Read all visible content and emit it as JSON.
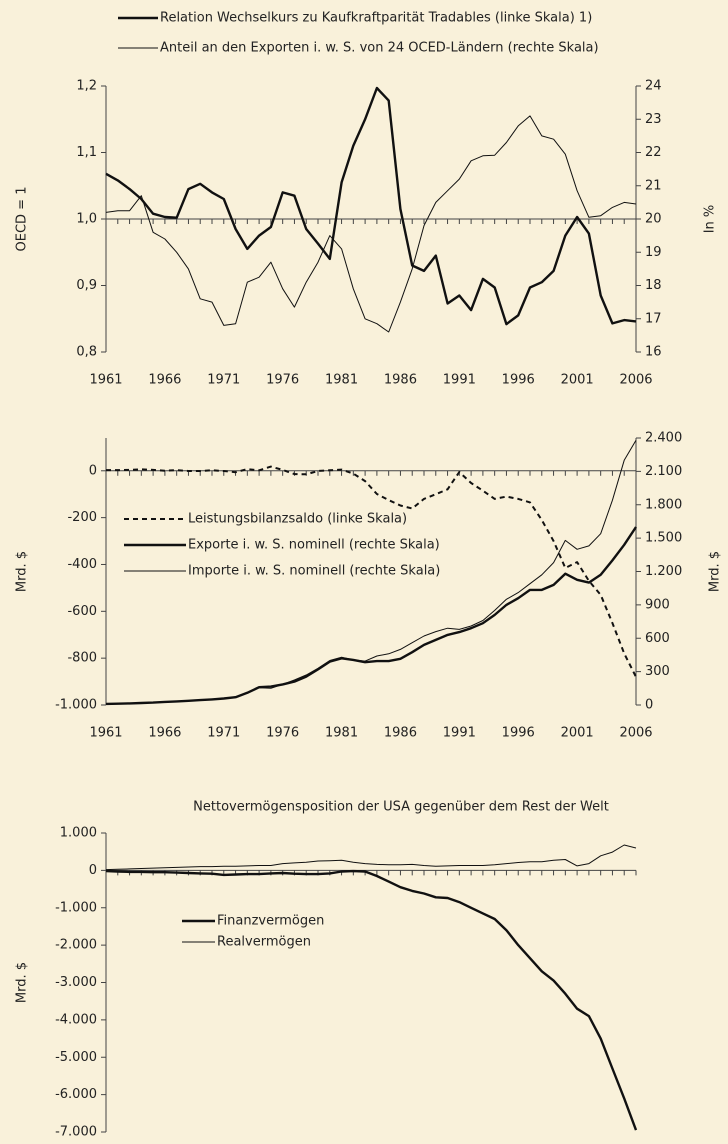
{
  "chart_data": [
    {
      "type": "line",
      "x": [
        1961,
        1962,
        1963,
        1964,
        1965,
        1966,
        1967,
        1968,
        1969,
        1970,
        1971,
        1972,
        1973,
        1974,
        1975,
        1976,
        1977,
        1978,
        1979,
        1980,
        1981,
        1982,
        1983,
        1984,
        1985,
        1986,
        1987,
        1988,
        1989,
        1990,
        1991,
        1992,
        1993,
        1994,
        1995,
        1996,
        1997,
        1998,
        1999,
        2000,
        2001,
        2002,
        2003,
        2004,
        2005,
        2006
      ],
      "xlim": [
        1961,
        2006
      ],
      "xticks": [
        1961,
        1966,
        1971,
        1976,
        1981,
        1986,
        1991,
        1996,
        2001,
        2006
      ],
      "ylim": [
        0.8,
        1.2
      ],
      "yticks": [
        {
          "value": 0.8,
          "label": "0,8"
        },
        {
          "value": 0.9,
          "label": "0,9"
        },
        {
          "value": 1.0,
          "label": "1,0"
        },
        {
          "value": 1.1,
          "label": "1,1"
        },
        {
          "value": 1.2,
          "label": "1,2"
        }
      ],
      "y2lim": [
        16,
        24
      ],
      "y2ticks": [
        16,
        17,
        18,
        19,
        20,
        21,
        22,
        23,
        24
      ],
      "xaxis_at": 1.0,
      "ylabel": "OECD = 1",
      "y2label": "In %",
      "legend": "top",
      "series": [
        {
          "name": "Relation Wechselkurs zu Kaufkraftparität Tradables (linke Skala) 1)",
          "color": "#111111",
          "style": "thick",
          "values": [
            1.068,
            1.058,
            1.045,
            1.03,
            1.008,
            1.003,
            1.002,
            1.045,
            1.053,
            1.04,
            1.03,
            0.985,
            0.955,
            0.975,
            0.988,
            1.04,
            1.035,
            0.985,
            0.963,
            0.94,
            1.055,
            1.11,
            1.15,
            1.197,
            1.178,
            1.015,
            0.93,
            0.922,
            0.945,
            0.873,
            0.885,
            0.863,
            0.91,
            0.897,
            0.842,
            0.855,
            0.897,
            0.905,
            0.922,
            0.975,
            1.003,
            0.978,
            0.885,
            0.843,
            0.848,
            0.846
          ]
        },
        {
          "name": "Anteil an den Exporten i. w. S. von 24 OCED-Ländern (rechte Skala)",
          "color": "#111111",
          "style": "thin",
          "axis": "y2",
          "values": [
            20.2,
            20.25,
            20.25,
            20.7,
            19.6,
            19.4,
            19.0,
            18.5,
            17.6,
            17.5,
            16.8,
            16.85,
            18.1,
            18.25,
            18.7,
            17.9,
            17.35,
            18.1,
            18.7,
            19.5,
            19.1,
            17.9,
            17.0,
            16.85,
            16.6,
            17.5,
            18.5,
            19.8,
            20.5,
            20.85,
            21.2,
            21.75,
            21.9,
            21.92,
            22.3,
            22.8,
            23.1,
            22.5,
            22.4,
            21.95,
            20.85,
            20.05,
            20.1,
            20.35,
            20.5,
            20.45
          ]
        }
      ]
    },
    {
      "type": "line",
      "x": [
        1961,
        1962,
        1963,
        1964,
        1965,
        1966,
        1967,
        1968,
        1969,
        1970,
        1971,
        1972,
        1973,
        1974,
        1975,
        1976,
        1977,
        1978,
        1979,
        1980,
        1981,
        1982,
        1983,
        1984,
        1985,
        1986,
        1987,
        1988,
        1989,
        1990,
        1991,
        1992,
        1993,
        1994,
        1995,
        1996,
        1997,
        1998,
        1999,
        2000,
        2001,
        2002,
        2003,
        2004,
        2005,
        2006
      ],
      "xlim": [
        1961,
        2006
      ],
      "xticks": [
        1961,
        1966,
        1971,
        1976,
        1981,
        1986,
        1991,
        1996,
        2001,
        2006
      ],
      "ylim": [
        -1000,
        140
      ],
      "yticks": [
        {
          "value": -1000,
          "label": "-1.000"
        },
        -800,
        -600,
        -400,
        -200,
        0
      ],
      "y2lim": [
        0,
        2400
      ],
      "y2ticks": [
        0,
        300,
        600,
        900,
        {
          "value": 1200,
          "label": "1.200"
        },
        {
          "value": 1500,
          "label": "1.500"
        },
        {
          "value": 1800,
          "label": "1.800"
        },
        {
          "value": 2100,
          "label": "2.100"
        },
        {
          "value": 2400,
          "label": "2.400"
        }
      ],
      "xaxis_at": 0,
      "ylabel": "Mrd. $",
      "y2label": "Mrd. $",
      "legend": "inside",
      "series": [
        {
          "name": "Leistungsbilanzsaldo (linke Skala)",
          "color": "#111111",
          "style": "dashed",
          "values": [
            3,
            3,
            4,
            6,
            4,
            0,
            3,
            -1,
            -1,
            2,
            -1,
            -6,
            7,
            2,
            18,
            4,
            -14,
            -15,
            -1,
            2,
            5,
            -12,
            -44,
            -99,
            -125,
            -148,
            -161,
            -120,
            -100,
            -79,
            -5,
            -52,
            -85,
            -120,
            -110,
            -120,
            -135,
            -210,
            -300,
            -415,
            -390,
            -470,
            -530,
            -650,
            -780,
            -880
          ]
        },
        {
          "name": "Exporte i. w. S. nominell (rechte Skala)",
          "color": "#111111",
          "style": "thick",
          "axis": "y2",
          "values": [
            10,
            12,
            14,
            18,
            22,
            28,
            32,
            38,
            44,
            50,
            58,
            70,
            110,
            160,
            165,
            185,
            210,
            255,
            320,
            390,
            420,
            405,
            385,
            395,
            395,
            415,
            475,
            540,
            585,
            630,
            655,
            690,
            735,
            810,
            900,
            960,
            1035,
            1035,
            1080,
            1180,
            1125,
            1100,
            1170,
            1300,
            1440,
            1600
          ]
        },
        {
          "name": "Importe i. w. S. nominell (rechte Skala)",
          "color": "#111111",
          "style": "thin",
          "axis": "y2",
          "values": [
            8,
            10,
            12,
            15,
            20,
            26,
            30,
            38,
            44,
            50,
            60,
            75,
            105,
            155,
            150,
            185,
            225,
            270,
            330,
            400,
            430,
            405,
            395,
            440,
            460,
            500,
            560,
            620,
            660,
            690,
            680,
            710,
            760,
            850,
            950,
            1010,
            1090,
            1170,
            1280,
            1480,
            1400,
            1430,
            1540,
            1840,
            2200,
            2380
          ]
        }
      ]
    },
    {
      "type": "line",
      "title": "Nettovermögensposition der USA gegenüber dem Rest der Welt",
      "x": [
        1961,
        1962,
        1963,
        1964,
        1965,
        1966,
        1967,
        1968,
        1969,
        1970,
        1971,
        1972,
        1973,
        1974,
        1975,
        1976,
        1977,
        1978,
        1979,
        1980,
        1981,
        1982,
        1983,
        1984,
        1985,
        1986,
        1987,
        1988,
        1989,
        1990,
        1991,
        1992,
        1993,
        1994,
        1995,
        1996,
        1997,
        1998,
        1999,
        2000,
        2001,
        2002,
        2003,
        2004,
        2005,
        2006
      ],
      "xlim": [
        1961,
        2006
      ],
      "xticks": [
        1961,
        1966,
        1971,
        1976,
        1981,
        1986,
        1991,
        1996,
        2001,
        2006
      ],
      "ylim": [
        -7000,
        1000
      ],
      "yticks": [
        {
          "value": -7000,
          "label": "-7.000"
        },
        {
          "value": -6000,
          "label": "-6.000"
        },
        {
          "value": -5000,
          "label": "-5.000"
        },
        {
          "value": -4000,
          "label": "-4.000"
        },
        {
          "value": -3000,
          "label": "-3.000"
        },
        {
          "value": -2000,
          "label": "-2.000"
        },
        {
          "value": -1000,
          "label": "-1.000"
        },
        0,
        {
          "value": 1000,
          "label": "1.000"
        }
      ],
      "xaxis_at": 0,
      "ylabel": "Mrd. $",
      "legend": "inside",
      "series": [
        {
          "name": "Finanzvermögen",
          "color": "#111111",
          "style": "thick",
          "values": [
            -20,
            -30,
            -40,
            -40,
            -50,
            -50,
            -60,
            -70,
            -80,
            -90,
            -120,
            -110,
            -100,
            -100,
            -80,
            -70,
            -90,
            -100,
            -100,
            -80,
            -30,
            -20,
            -30,
            -150,
            -300,
            -450,
            -550,
            -620,
            -720,
            -740,
            -850,
            -1000,
            -1150,
            -1300,
            -1600,
            -2000,
            -2350,
            -2700,
            -2950,
            -3300,
            -3700,
            -3900,
            -4500,
            -5300,
            -6100,
            -6950
          ]
        },
        {
          "name": "Realvermögen",
          "color": "#111111",
          "style": "thin",
          "values": [
            20,
            30,
            40,
            50,
            60,
            70,
            80,
            90,
            100,
            100,
            110,
            110,
            120,
            130,
            130,
            180,
            200,
            220,
            250,
            260,
            270,
            220,
            180,
            160,
            150,
            150,
            160,
            130,
            110,
            120,
            130,
            130,
            130,
            150,
            180,
            210,
            230,
            230,
            270,
            290,
            120,
            180,
            390,
            490,
            680,
            600
          ]
        }
      ]
    }
  ]
}
